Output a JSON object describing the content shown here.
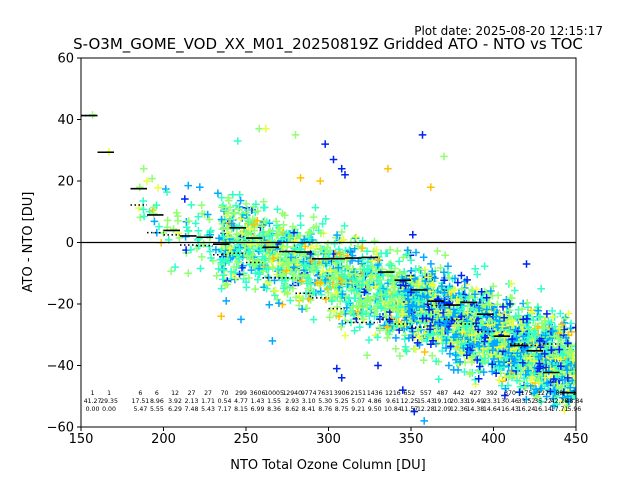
{
  "figure": {
    "plot_date": "Plot date: 2025-08-20 12:15:17",
    "title": "S-O3M_GOME_VOD_XX_M01_20250819Z Gridded ATO - NTO vs TOC"
  },
  "chart_data": {
    "type": "scatter",
    "title": "S-O3M_GOME_VOD_XX_M01_20250819Z Gridded ATO - NTO vs TOC",
    "xlabel": "NTO Total Ozone Column [DU]",
    "ylabel": "ATO - NTO [DU]",
    "xlim": [
      150,
      450
    ],
    "ylim": [
      -60,
      60
    ],
    "xticks": [
      150,
      200,
      250,
      300,
      350,
      400,
      450
    ],
    "yticks": [
      -60,
      -40,
      -20,
      0,
      20,
      40,
      60
    ],
    "grid": false,
    "zero_line": 0,
    "marker": "plus",
    "point_colors": [
      "#0022ee",
      "#00a8ff",
      "#30ffc8",
      "#90ff70",
      "#e8ff40",
      "#ffc000"
    ],
    "scatter_clusters": [
      {
        "name": "main",
        "x_range": [
          235,
          450
        ],
        "y_mean_at_x0": 2,
        "x0": 240,
        "slope": -0.2,
        "spread": 10
      },
      {
        "name": "high",
        "x_range": [
          345,
          450
        ],
        "y_mean_at_x0": -25,
        "x0": 380,
        "slope": -0.25,
        "spread": 10
      },
      {
        "name": "low_toc",
        "x_range": [
          185,
          240
        ],
        "y_mean_at_x0": 5,
        "x0": 210,
        "slope": -0.3,
        "spread": 8
      }
    ],
    "scatter_points": [
      {
        "x": 157,
        "y": 41.5,
        "c": 3
      },
      {
        "x": 167,
        "y": 29.5,
        "c": 4
      },
      {
        "x": 188,
        "y": 24,
        "c": 3
      },
      {
        "x": 190,
        "y": 20,
        "c": 4
      },
      {
        "x": 215,
        "y": 18.5,
        "c": 1
      },
      {
        "x": 222,
        "y": 18,
        "c": 1
      },
      {
        "x": 233,
        "y": 16,
        "c": 1
      },
      {
        "x": 245,
        "y": 33,
        "c": 2
      },
      {
        "x": 258,
        "y": 37,
        "c": 3
      },
      {
        "x": 262,
        "y": 37,
        "c": 4
      },
      {
        "x": 280,
        "y": 35,
        "c": 3
      },
      {
        "x": 298,
        "y": 32,
        "c": 0
      },
      {
        "x": 303,
        "y": 27,
        "c": 0
      },
      {
        "x": 308,
        "y": 24,
        "c": 0
      },
      {
        "x": 310,
        "y": 22,
        "c": 0
      },
      {
        "x": 336,
        "y": 24,
        "c": 5
      },
      {
        "x": 357,
        "y": 35,
        "c": 0
      },
      {
        "x": 370,
        "y": 28,
        "c": 3
      },
      {
        "x": 362,
        "y": 18,
        "c": 5
      },
      {
        "x": 283,
        "y": 21,
        "c": 5
      },
      {
        "x": 295,
        "y": 20,
        "c": 5
      },
      {
        "x": 207,
        "y": -8,
        "c": 2
      },
      {
        "x": 215,
        "y": -10,
        "c": 3
      },
      {
        "x": 235,
        "y": -24,
        "c": 5
      },
      {
        "x": 238,
        "y": -19,
        "c": 1
      },
      {
        "x": 247,
        "y": -25,
        "c": 1
      },
      {
        "x": 266,
        "y": -32,
        "c": 1
      },
      {
        "x": 305,
        "y": -41,
        "c": 0
      },
      {
        "x": 308,
        "y": -44,
        "c": 0
      },
      {
        "x": 330,
        "y": -40,
        "c": 0
      },
      {
        "x": 345,
        "y": -48,
        "c": 0
      },
      {
        "x": 352,
        "y": -55,
        "c": 0
      },
      {
        "x": 358,
        "y": -58,
        "c": 1
      },
      {
        "x": 373,
        "y": -40,
        "c": 1
      },
      {
        "x": 410,
        "y": -20,
        "c": 0
      },
      {
        "x": 418,
        "y": -25,
        "c": 0
      },
      {
        "x": 420,
        "y": -7,
        "c": 0
      },
      {
        "x": 428,
        "y": -32,
        "c": 0
      },
      {
        "x": 435,
        "y": -35,
        "c": 0
      },
      {
        "x": 440,
        "y": -28,
        "c": 4
      },
      {
        "x": 445,
        "y": -50,
        "c": 1
      }
    ],
    "bin_medians": [
      {
        "x": 155,
        "y": 41.27
      },
      {
        "x": 165,
        "y": 29.35
      },
      {
        "x": 185,
        "y": 17.51
      },
      {
        "x": 195,
        "y": 8.96
      },
      {
        "x": 205,
        "y": 3.92
      },
      {
        "x": 215,
        "y": 2.13
      },
      {
        "x": 225,
        "y": 1.71
      },
      {
        "x": 235,
        "y": -0.54
      },
      {
        "x": 245,
        "y": 4.77
      },
      {
        "x": 255,
        "y": 1.43
      },
      {
        "x": 265,
        "y": -1.55
      },
      {
        "x": 275,
        "y": -2.93
      },
      {
        "x": 285,
        "y": -3.1
      },
      {
        "x": 295,
        "y": -5.3
      },
      {
        "x": 305,
        "y": -5.25
      },
      {
        "x": 315,
        "y": -5.07
      },
      {
        "x": 325,
        "y": -4.86
      },
      {
        "x": 335,
        "y": -9.61
      },
      {
        "x": 345,
        "y": -12.25
      },
      {
        "x": 355,
        "y": -15.43
      },
      {
        "x": 365,
        "y": -19.1
      },
      {
        "x": 375,
        "y": -20.33
      },
      {
        "x": 385,
        "y": -19.49
      },
      {
        "x": 395,
        "y": -23.31
      },
      {
        "x": 405,
        "y": -30.46
      },
      {
        "x": 415,
        "y": -33.52
      },
      {
        "x": 425,
        "y": -35.22
      },
      {
        "x": 435,
        "y": -42.28
      },
      {
        "x": 445,
        "y": -48.84
      }
    ],
    "bin_means": [
      {
        "x": 155,
        "y": 41.27
      },
      {
        "x": 165,
        "y": 29.35
      },
      {
        "x": 185,
        "y": 12.2
      },
      {
        "x": 195,
        "y": 3.2
      },
      {
        "x": 205,
        "y": 2.5
      },
      {
        "x": 215,
        "y": -0.8
      },
      {
        "x": 225,
        "y": -1.0
      },
      {
        "x": 235,
        "y": -4.0
      },
      {
        "x": 245,
        "y": -3.5
      },
      {
        "x": 255,
        "y": -6.5
      },
      {
        "x": 265,
        "y": -11.5
      },
      {
        "x": 275,
        "y": -11.5
      },
      {
        "x": 285,
        "y": -16.5
      },
      {
        "x": 295,
        "y": -18.0
      },
      {
        "x": 305,
        "y": -21.5
      },
      {
        "x": 315,
        "y": -26.0
      },
      {
        "x": 325,
        "y": -26.0
      },
      {
        "x": 335,
        "y": -25.0
      },
      {
        "x": 345,
        "y": -26.5
      },
      {
        "x": 355,
        "y": -27.5
      },
      {
        "x": 365,
        "y": -20.5
      },
      {
        "x": 375,
        "y": -25.0
      },
      {
        "x": 385,
        "y": -26.5
      },
      {
        "x": 395,
        "y": -29.0
      },
      {
        "x": 405,
        "y": -30.5
      },
      {
        "x": 415,
        "y": -33.0
      },
      {
        "x": 425,
        "y": -33.5
      },
      {
        "x": 435,
        "y": -33.0
      },
      {
        "x": 445,
        "y": -48.84
      }
    ],
    "bin_annotations": [
      {
        "x": 157,
        "lines": [
          "1",
          "41.27",
          "0.00"
        ]
      },
      {
        "x": 167,
        "lines": [
          "1",
          "29.35",
          "0.00"
        ]
      },
      {
        "x": 186,
        "lines": [
          "6",
          "17.51",
          "5.47"
        ]
      },
      {
        "x": 196,
        "lines": [
          "6",
          "8.96",
          "5.55"
        ]
      },
      {
        "x": 207,
        "lines": [
          "12",
          "3.92",
          "6.29"
        ]
      },
      {
        "x": 217,
        "lines": [
          "27",
          "2.13",
          "7.48"
        ]
      },
      {
        "x": 227,
        "lines": [
          "27",
          "1.71",
          "5.43"
        ]
      },
      {
        "x": 237,
        "lines": [
          "70",
          "0.54",
          "7.17"
        ]
      },
      {
        "x": 247,
        "lines": [
          "299",
          "4.77",
          "8.15"
        ]
      },
      {
        "x": 257,
        "lines": [
          "3606",
          "1.43",
          "6.99"
        ]
      },
      {
        "x": 267,
        "lines": [
          "10005",
          "1.55",
          "8.36"
        ]
      },
      {
        "x": 278,
        "lines": [
          "12940",
          "2.93",
          "8.62"
        ]
      },
      {
        "x": 288,
        "lines": [
          "9774",
          "3.10",
          "8.41"
        ]
      },
      {
        "x": 298,
        "lines": [
          "7631",
          "5.30",
          "8.76"
        ]
      },
      {
        "x": 308,
        "lines": [
          "3906",
          "5.25",
          "8.75"
        ]
      },
      {
        "x": 318,
        "lines": [
          "2151",
          "5.07",
          "9.21"
        ]
      },
      {
        "x": 328,
        "lines": [
          "1436",
          "4.86",
          "9.50"
        ]
      },
      {
        "x": 339,
        "lines": [
          "1216",
          "9.61",
          "10.84"
        ]
      },
      {
        "x": 349,
        "lines": [
          "652",
          "12.25",
          "11.57"
        ]
      },
      {
        "x": 359,
        "lines": [
          "557",
          "15.43",
          "12.28"
        ]
      },
      {
        "x": 369,
        "lines": [
          "487",
          "19.10",
          "12.09"
        ]
      },
      {
        "x": 379,
        "lines": [
          "442",
          "20.33",
          "12.36"
        ]
      },
      {
        "x": 389,
        "lines": [
          "427",
          "19.49",
          "14.38"
        ]
      },
      {
        "x": 399,
        "lines": [
          "392",
          "23.31",
          "14.64"
        ]
      },
      {
        "x": 410,
        "lines": [
          "370",
          "30.46",
          "16.43"
        ]
      },
      {
        "x": 420,
        "lines": [
          "175",
          "33.52",
          "16.24"
        ]
      },
      {
        "x": 430,
        "lines": [
          "127",
          "35.22",
          "16.14"
        ]
      },
      {
        "x": 440,
        "lines": [
          "83",
          "42.28",
          "17.71"
        ]
      },
      {
        "x": 449,
        "lines": [
          "1",
          "48.84",
          "5.96"
        ]
      }
    ]
  }
}
